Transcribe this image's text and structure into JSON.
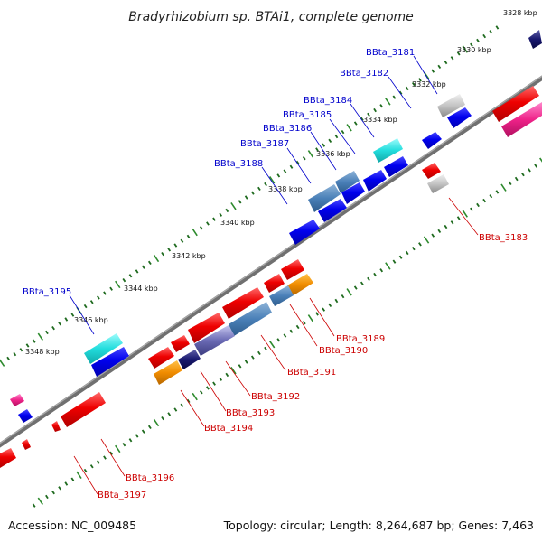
{
  "title": "Bradyrhizobium sp. BTAi1, complete genome",
  "accession": "Accession: NC_009485",
  "summary": "Topology: circular; Length: 8,264,687 bp; Genes: 7,463",
  "colors": {
    "backbone": "#707070",
    "label_top": "#0000cc",
    "label_bottom": "#cc0000",
    "tick_major": "#2d8a2d",
    "tick_minor": "#1e6a1e"
  },
  "ticks": [
    "3328 kbp",
    "3330 kbp",
    "3332 kbp",
    "3334 kbp",
    "3336 kbp",
    "3338 kbp",
    "3340 kbp",
    "3342 kbp",
    "3344 kbp",
    "3346 kbp",
    "3348 kbp"
  ],
  "genes_top": [
    {
      "id": "BBta_3181",
      "label": "BBta_3181"
    },
    {
      "id": "BBta_3182",
      "label": "BBta_3182"
    },
    {
      "id": "BBta_3184",
      "label": "BBta_3184"
    },
    {
      "id": "BBta_3185",
      "label": "BBta_3185"
    },
    {
      "id": "BBta_3186",
      "label": "BBta_3186"
    },
    {
      "id": "BBta_3187",
      "label": "BBta_3187"
    },
    {
      "id": "BBta_3188",
      "label": "BBta_3188"
    },
    {
      "id": "BBta_3195",
      "label": "BBta_3195"
    }
  ],
  "genes_bottom": [
    {
      "id": "BBta_3183",
      "label": "BBta_3183"
    },
    {
      "id": "BBta_3189",
      "label": "BBta_3189"
    },
    {
      "id": "BBta_3190",
      "label": "BBta_3190"
    },
    {
      "id": "BBta_3191",
      "label": "BBta_3191"
    },
    {
      "id": "BBta_3192",
      "label": "BBta_3192"
    },
    {
      "id": "BBta_3193",
      "label": "BBta_3193"
    },
    {
      "id": "BBta_3194",
      "label": "BBta_3194"
    },
    {
      "id": "BBta_3196",
      "label": "BBta_3196"
    },
    {
      "id": "BBta_3197",
      "label": "BBta_3197"
    }
  ]
}
